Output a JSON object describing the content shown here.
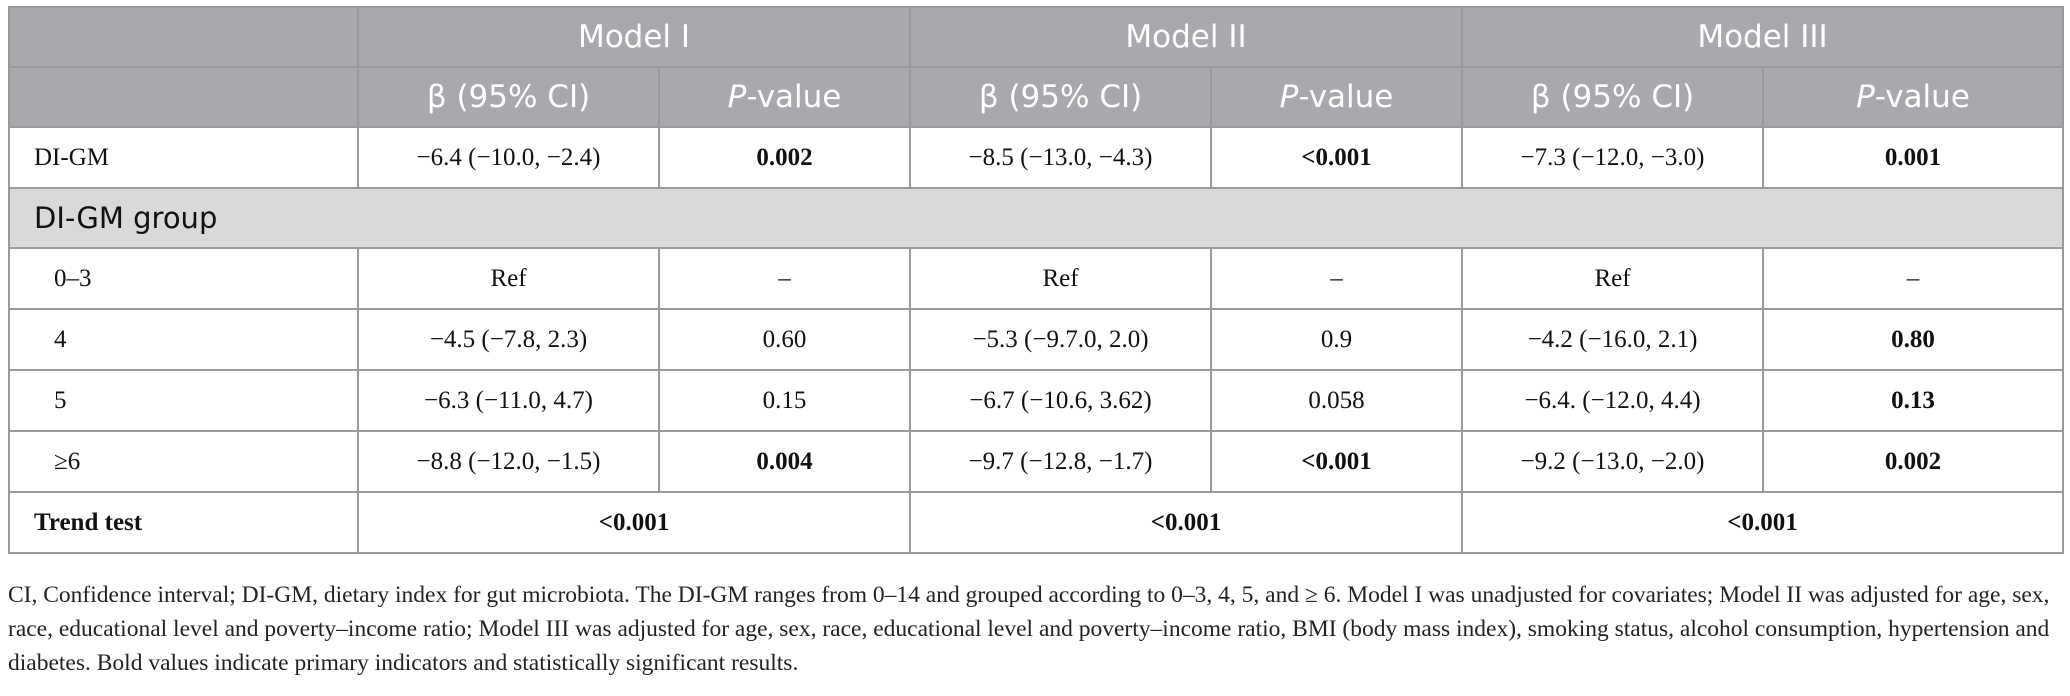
{
  "header": {
    "models": [
      "Model I",
      "Model II",
      "Model III"
    ],
    "beta_label": "β (95% CI)",
    "p_italic": "P",
    "p_rest": "-value"
  },
  "rows": [
    {
      "label": "DI-GM",
      "m1_beta": "−6.4 (−10.0, −2.4)",
      "m1_p": "0.002",
      "m2_beta": "−8.5 (−13.0, −4.3)",
      "m2_p": "<0.001",
      "m3_beta": "−7.3 (−12.0, −3.0)",
      "m3_p": "0.001"
    },
    {
      "group_label": "DI-GM group"
    },
    {
      "label": "0–3",
      "m1_beta": "Ref",
      "m1_p": "–",
      "m2_beta": "Ref",
      "m2_p": "–",
      "m3_beta": "Ref",
      "m3_p": "–"
    },
    {
      "label": "4",
      "m1_beta": "−4.5 (−7.8, 2.3)",
      "m1_p": "0.60",
      "m2_beta": "−5.3 (−9.7.0, 2.0)",
      "m2_p": "0.9",
      "m3_beta": "−4.2 (−16.0, 2.1)",
      "m3_p": "0.80"
    },
    {
      "label": "5",
      "m1_beta": "−6.3 (−11.0, 4.7)",
      "m1_p": "0.15",
      "m2_beta": "−6.7 (−10.6, 3.62)",
      "m2_p": "0.058",
      "m3_beta": "−6.4. (−12.0, 4.4)",
      "m3_p": "0.13"
    },
    {
      "label": "≥6",
      "m1_beta": "−8.8 (−12.0, −1.5)",
      "m1_p": "0.004",
      "m2_beta": "−9.7 (−12.8, −1.7)",
      "m2_p": "<0.001",
      "m3_beta": "−9.2 (−13.0, −2.0)",
      "m3_p": "0.002"
    }
  ],
  "trend": {
    "label": "Trend test",
    "m1": "<0.001",
    "m2": "<0.001",
    "m3": "<0.001"
  },
  "caption": "CI, Confidence interval; DI-GM, dietary index for gut microbiota. The DI-GM ranges from 0–14 and grouped according to 0–3, 4, 5, and ≥ 6. Model I was unadjusted for covariates; Model II was adjusted for age, sex, race, educational level and poverty–income ratio; Model III was adjusted for age, sex, race, educational level and poverty–income ratio, BMI (body mass index), smoking status, alcohol consumption, hypertension and diabetes. Bold values indicate primary indicators and statistically significant results."
}
